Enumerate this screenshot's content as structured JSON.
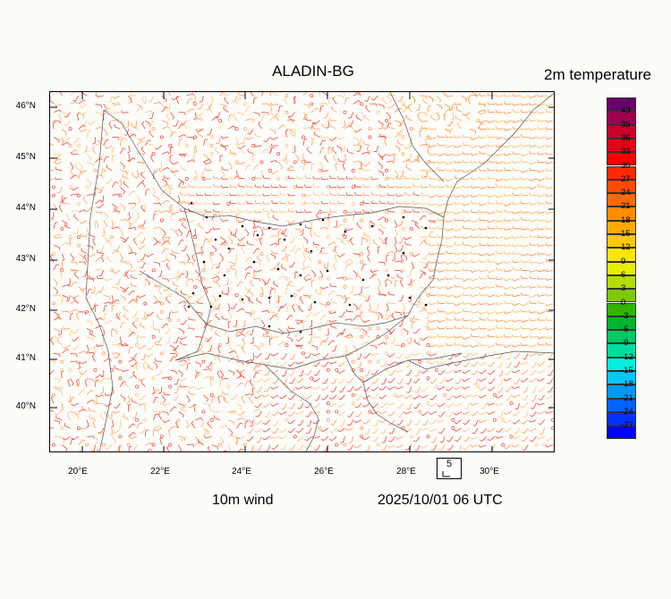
{
  "title": "ALADIN-BG",
  "variable_label": "2m temperature",
  "wind_label": "10m wind",
  "time_label": "2025/10/01 06 UTC",
  "wind_reference": "5",
  "map": {
    "lat_labels": [
      "46°N",
      "45°N",
      "44°N",
      "43°N",
      "42°N",
      "41°N",
      "40°N"
    ],
    "lon_labels": [
      "20°E",
      "22°E",
      "24°E",
      "26°E",
      "28°E",
      "30°E"
    ]
  },
  "colorbar": {
    "labels": [
      "43",
      "39",
      "36",
      "33",
      "30",
      "27",
      "24",
      "21",
      "18",
      "15",
      "12",
      "9",
      "6",
      "3",
      "0",
      "-3",
      "-6",
      "-9",
      "-12",
      "-15",
      "-18",
      "-21",
      "-24",
      "-27"
    ],
    "colors": [
      "#6a006a",
      "#9c0050",
      "#c8002a",
      "#e2001a",
      "#ff0000",
      "#ff2a00",
      "#ff4a00",
      "#ff6a00",
      "#ff8c00",
      "#ffaa00",
      "#ffc800",
      "#ffe600",
      "#e6f000",
      "#b4dc00",
      "#82c800",
      "#32b400",
      "#00b432",
      "#00c864",
      "#00dca0",
      "#00f0dc",
      "#00c8ff",
      "#0096ff",
      "#0064ff",
      "#0032ff",
      "#0000ff"
    ]
  }
}
